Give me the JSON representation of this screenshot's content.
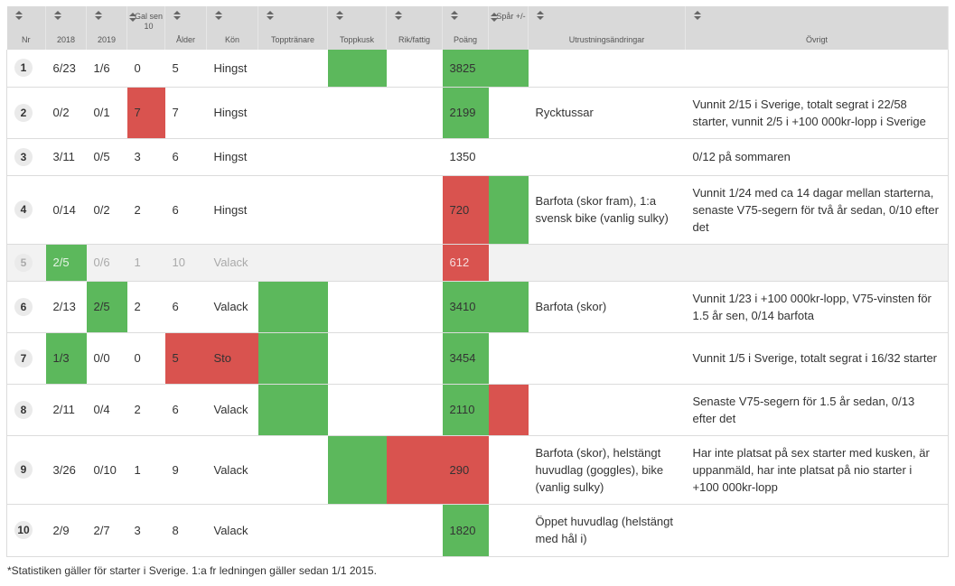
{
  "colors": {
    "green": "#5cb85c",
    "red": "#d9534f",
    "header_bg": "#d9d9d9"
  },
  "columns": [
    {
      "key": "nr",
      "label": "Nr"
    },
    {
      "key": "y2018",
      "label": "2018"
    },
    {
      "key": "y2019",
      "label": "2019"
    },
    {
      "key": "galsen",
      "label": "Gal sen 10"
    },
    {
      "key": "alder",
      "label": "Ålder"
    },
    {
      "key": "kon",
      "label": "Kön"
    },
    {
      "key": "topptranare",
      "label": "Topptränare"
    },
    {
      "key": "toppkusk",
      "label": "Toppkusk"
    },
    {
      "key": "rikfattig",
      "label": "Rik/fattig"
    },
    {
      "key": "poang",
      "label": "Poäng"
    },
    {
      "key": "spar",
      "label": "Spår +/-"
    },
    {
      "key": "utrustning",
      "label": "Utrustningsändringar"
    },
    {
      "key": "ovrigt",
      "label": "Övrigt"
    }
  ],
  "rows": [
    {
      "nr": "1",
      "y2018": "6/23",
      "y2019": "1/6",
      "galsen": "0",
      "alder": "5",
      "kon": "Hingst",
      "topptranare": "",
      "toppkusk": "",
      "rikfattig": "",
      "poang": "3825",
      "spar": "",
      "utrustning": "",
      "ovrigt": "",
      "dim": false,
      "hl": {
        "toppkusk": "g",
        "poang": "g",
        "spar": "g"
      }
    },
    {
      "nr": "2",
      "y2018": "0/2",
      "y2019": "0/1",
      "galsen": "7",
      "alder": "7",
      "kon": "Hingst",
      "topptranare": "",
      "toppkusk": "",
      "rikfattig": "",
      "poang": "2199",
      "spar": "",
      "utrustning": "Rycktussar",
      "ovrigt": "Vunnit 2/15 i Sverige, totalt segrat i 22/58 starter, vunnit 2/5 i +100 000kr-lopp i Sverige",
      "dim": false,
      "hl": {
        "galsen": "r",
        "poang": "g"
      }
    },
    {
      "nr": "3",
      "y2018": "3/11",
      "y2019": "0/5",
      "galsen": "3",
      "alder": "6",
      "kon": "Hingst",
      "topptranare": "",
      "toppkusk": "",
      "rikfattig": "",
      "poang": "1350",
      "spar": "",
      "utrustning": "",
      "ovrigt": "0/12 på sommaren",
      "dim": false,
      "hl": {}
    },
    {
      "nr": "4",
      "y2018": "0/14",
      "y2019": "0/2",
      "galsen": "2",
      "alder": "6",
      "kon": "Hingst",
      "topptranare": "",
      "toppkusk": "",
      "rikfattig": "",
      "poang": "720",
      "spar": "",
      "utrustning": "Barfota (skor fram), 1:a svensk bike (vanlig sulky)",
      "ovrigt": "Vunnit 1/24 med ca 14 dagar mellan starterna, senaste V75-segern för två år sedan, 0/10 efter det",
      "dim": false,
      "hl": {
        "poang": "r",
        "spar": "g"
      }
    },
    {
      "nr": "5",
      "y2018": "2/5",
      "y2019": "0/6",
      "galsen": "1",
      "alder": "10",
      "kon": "Valack",
      "topptranare": "",
      "toppkusk": "",
      "rikfattig": "",
      "poang": "612",
      "spar": "",
      "utrustning": "",
      "ovrigt": "",
      "dim": true,
      "hl": {
        "y2018": "g",
        "poang": "r"
      }
    },
    {
      "nr": "6",
      "y2018": "2/13",
      "y2019": "2/5",
      "galsen": "2",
      "alder": "6",
      "kon": "Valack",
      "topptranare": "",
      "toppkusk": "",
      "rikfattig": "",
      "poang": "3410",
      "spar": "",
      "utrustning": "Barfota (skor)",
      "ovrigt": "Vunnit 1/23 i +100 000kr-lopp, V75-vinsten för 1.5 år sen, 0/14 barfota",
      "dim": false,
      "hl": {
        "y2019": "g",
        "topptranare": "g",
        "poang": "g",
        "spar": "g"
      }
    },
    {
      "nr": "7",
      "y2018": "1/3",
      "y2019": "0/0",
      "galsen": "0",
      "alder": "5",
      "kon": "Sto",
      "topptranare": "",
      "toppkusk": "",
      "rikfattig": "",
      "poang": "3454",
      "spar": "",
      "utrustning": "",
      "ovrigt": "Vunnit 1/5 i Sverige, totalt segrat i 16/32 starter",
      "dim": false,
      "hl": {
        "y2018": "g",
        "alder": "r",
        "kon": "r",
        "topptranare": "g",
        "poang": "g"
      }
    },
    {
      "nr": "8",
      "y2018": "2/11",
      "y2019": "0/4",
      "galsen": "2",
      "alder": "6",
      "kon": "Valack",
      "topptranare": "",
      "toppkusk": "",
      "rikfattig": "",
      "poang": "2110",
      "spar": "",
      "utrustning": "",
      "ovrigt": "Senaste V75-segern för 1.5 år sedan, 0/13 efter det",
      "dim": false,
      "hl": {
        "topptranare": "g",
        "poang": "g",
        "spar": "r"
      }
    },
    {
      "nr": "9",
      "y2018": "3/26",
      "y2019": "0/10",
      "galsen": "1",
      "alder": "9",
      "kon": "Valack",
      "topptranare": "",
      "toppkusk": "",
      "rikfattig": "",
      "poang": "290",
      "spar": "",
      "utrustning": "Barfota (skor), helstängt huvudlag (goggles), bike (vanlig sulky)",
      "ovrigt": "Har inte platsat på sex starter med kusken, är uppanmäld, har inte platsat på nio starter i +100 000kr-lopp",
      "dim": false,
      "hl": {
        "toppkusk": "g",
        "rikfattig": "r",
        "poang": "r"
      }
    },
    {
      "nr": "10",
      "y2018": "2/9",
      "y2019": "2/7",
      "galsen": "3",
      "alder": "8",
      "kon": "Valack",
      "topptranare": "",
      "toppkusk": "",
      "rikfattig": "",
      "poang": "1820",
      "spar": "",
      "utrustning": "Öppet huvudlag (helstängt med hål i)",
      "ovrigt": "",
      "dim": false,
      "hl": {
        "poang": "g"
      }
    }
  ],
  "footnote": "*Statistiken gäller för starter i Sverige. 1:a fr ledningen gäller sedan 1/1 2015."
}
